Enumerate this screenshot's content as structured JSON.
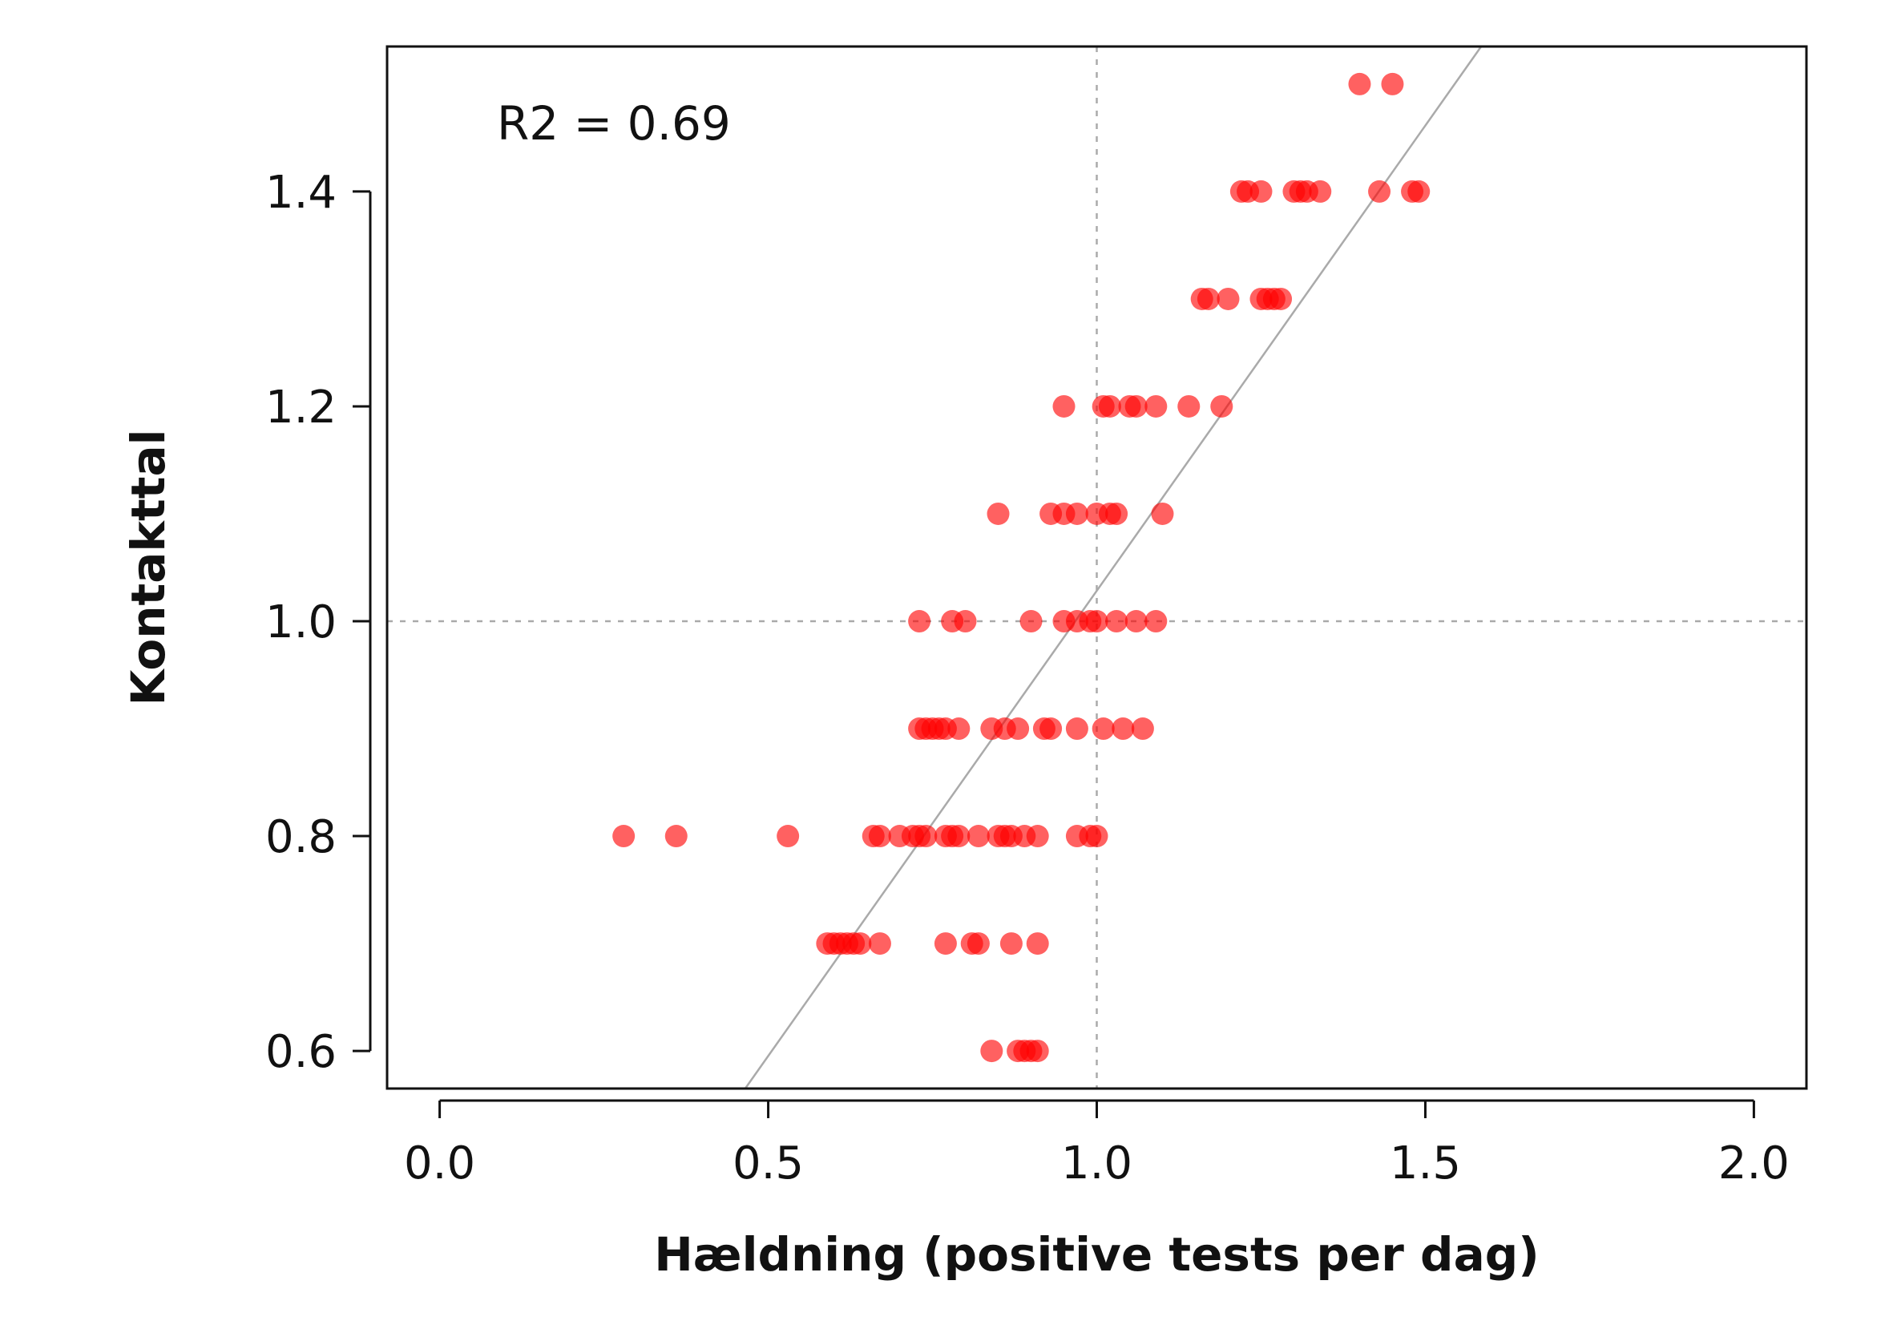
{
  "chart_data": {
    "type": "scatter",
    "title": "",
    "xlabel": "Hældning (positive tests per dag)",
    "ylabel": "Kontakttal",
    "annotation": "R2 = 0.69",
    "xlim": [
      -0.08,
      2.08
    ],
    "ylim": [
      0.565,
      1.535
    ],
    "x_ticks": [
      "0.0",
      "0.5",
      "1.0",
      "1.5",
      "2.0"
    ],
    "x_tick_values": [
      0.0,
      0.5,
      1.0,
      1.5,
      2.0
    ],
    "y_ticks": [
      "0.6",
      "0.8",
      "1.0",
      "1.2",
      "1.4"
    ],
    "y_tick_values": [
      0.6,
      0.8,
      1.0,
      1.2,
      1.4
    ],
    "grid": false,
    "reference_lines": {
      "x": 1.0,
      "y": 1.0,
      "style": "dotted",
      "color": "#aaaaaa"
    },
    "fit_line": {
      "x": [
        0.465,
        1.585
      ],
      "y": [
        0.565,
        1.535
      ],
      "color": "#aaaaaa"
    },
    "point_color": "#ff0000",
    "point_opacity": 0.62,
    "series": [
      {
        "points": [
          [
            1.4,
            1.5
          ],
          [
            1.45,
            1.5
          ],
          [
            1.22,
            1.4
          ],
          [
            1.23,
            1.4
          ],
          [
            1.25,
            1.4
          ],
          [
            1.3,
            1.4
          ],
          [
            1.31,
            1.4
          ],
          [
            1.32,
            1.4
          ],
          [
            1.34,
            1.4
          ],
          [
            1.43,
            1.4
          ],
          [
            1.48,
            1.4
          ],
          [
            1.49,
            1.4
          ],
          [
            1.16,
            1.3
          ],
          [
            1.17,
            1.3
          ],
          [
            1.2,
            1.3
          ],
          [
            1.25,
            1.3
          ],
          [
            1.26,
            1.3
          ],
          [
            1.27,
            1.3
          ],
          [
            1.28,
            1.3
          ],
          [
            0.95,
            1.2
          ],
          [
            1.01,
            1.2
          ],
          [
            1.02,
            1.2
          ],
          [
            1.05,
            1.2
          ],
          [
            1.06,
            1.2
          ],
          [
            1.09,
            1.2
          ],
          [
            1.14,
            1.2
          ],
          [
            1.19,
            1.2
          ],
          [
            0.85,
            1.1
          ],
          [
            0.93,
            1.1
          ],
          [
            0.95,
            1.1
          ],
          [
            0.97,
            1.1
          ],
          [
            1.0,
            1.1
          ],
          [
            1.02,
            1.1
          ],
          [
            1.03,
            1.1
          ],
          [
            1.1,
            1.1
          ],
          [
            0.73,
            1.0
          ],
          [
            0.78,
            1.0
          ],
          [
            0.8,
            1.0
          ],
          [
            0.9,
            1.0
          ],
          [
            0.95,
            1.0
          ],
          [
            0.97,
            1.0
          ],
          [
            0.99,
            1.0
          ],
          [
            1.0,
            1.0
          ],
          [
            1.03,
            1.0
          ],
          [
            1.06,
            1.0
          ],
          [
            1.09,
            1.0
          ],
          [
            0.73,
            0.9
          ],
          [
            0.74,
            0.9
          ],
          [
            0.75,
            0.9
          ],
          [
            0.76,
            0.9
          ],
          [
            0.77,
            0.9
          ],
          [
            0.79,
            0.9
          ],
          [
            0.84,
            0.9
          ],
          [
            0.86,
            0.9
          ],
          [
            0.88,
            0.9
          ],
          [
            0.92,
            0.9
          ],
          [
            0.93,
            0.9
          ],
          [
            0.97,
            0.9
          ],
          [
            1.01,
            0.9
          ],
          [
            1.04,
            0.9
          ],
          [
            1.07,
            0.9
          ],
          [
            0.28,
            0.8
          ],
          [
            0.36,
            0.8
          ],
          [
            0.53,
            0.8
          ],
          [
            0.66,
            0.8
          ],
          [
            0.67,
            0.8
          ],
          [
            0.7,
            0.8
          ],
          [
            0.72,
            0.8
          ],
          [
            0.73,
            0.8
          ],
          [
            0.74,
            0.8
          ],
          [
            0.77,
            0.8
          ],
          [
            0.78,
            0.8
          ],
          [
            0.79,
            0.8
          ],
          [
            0.82,
            0.8
          ],
          [
            0.85,
            0.8
          ],
          [
            0.86,
            0.8
          ],
          [
            0.87,
            0.8
          ],
          [
            0.89,
            0.8
          ],
          [
            0.91,
            0.8
          ],
          [
            0.97,
            0.8
          ],
          [
            0.99,
            0.8
          ],
          [
            1.0,
            0.8
          ],
          [
            0.59,
            0.7
          ],
          [
            0.6,
            0.7
          ],
          [
            0.61,
            0.7
          ],
          [
            0.62,
            0.7
          ],
          [
            0.63,
            0.7
          ],
          [
            0.64,
            0.7
          ],
          [
            0.67,
            0.7
          ],
          [
            0.77,
            0.7
          ],
          [
            0.81,
            0.7
          ],
          [
            0.82,
            0.7
          ],
          [
            0.87,
            0.7
          ],
          [
            0.91,
            0.7
          ],
          [
            0.84,
            0.6
          ],
          [
            0.88,
            0.6
          ],
          [
            0.89,
            0.6
          ],
          [
            0.9,
            0.6
          ],
          [
            0.91,
            0.6
          ]
        ]
      }
    ]
  }
}
